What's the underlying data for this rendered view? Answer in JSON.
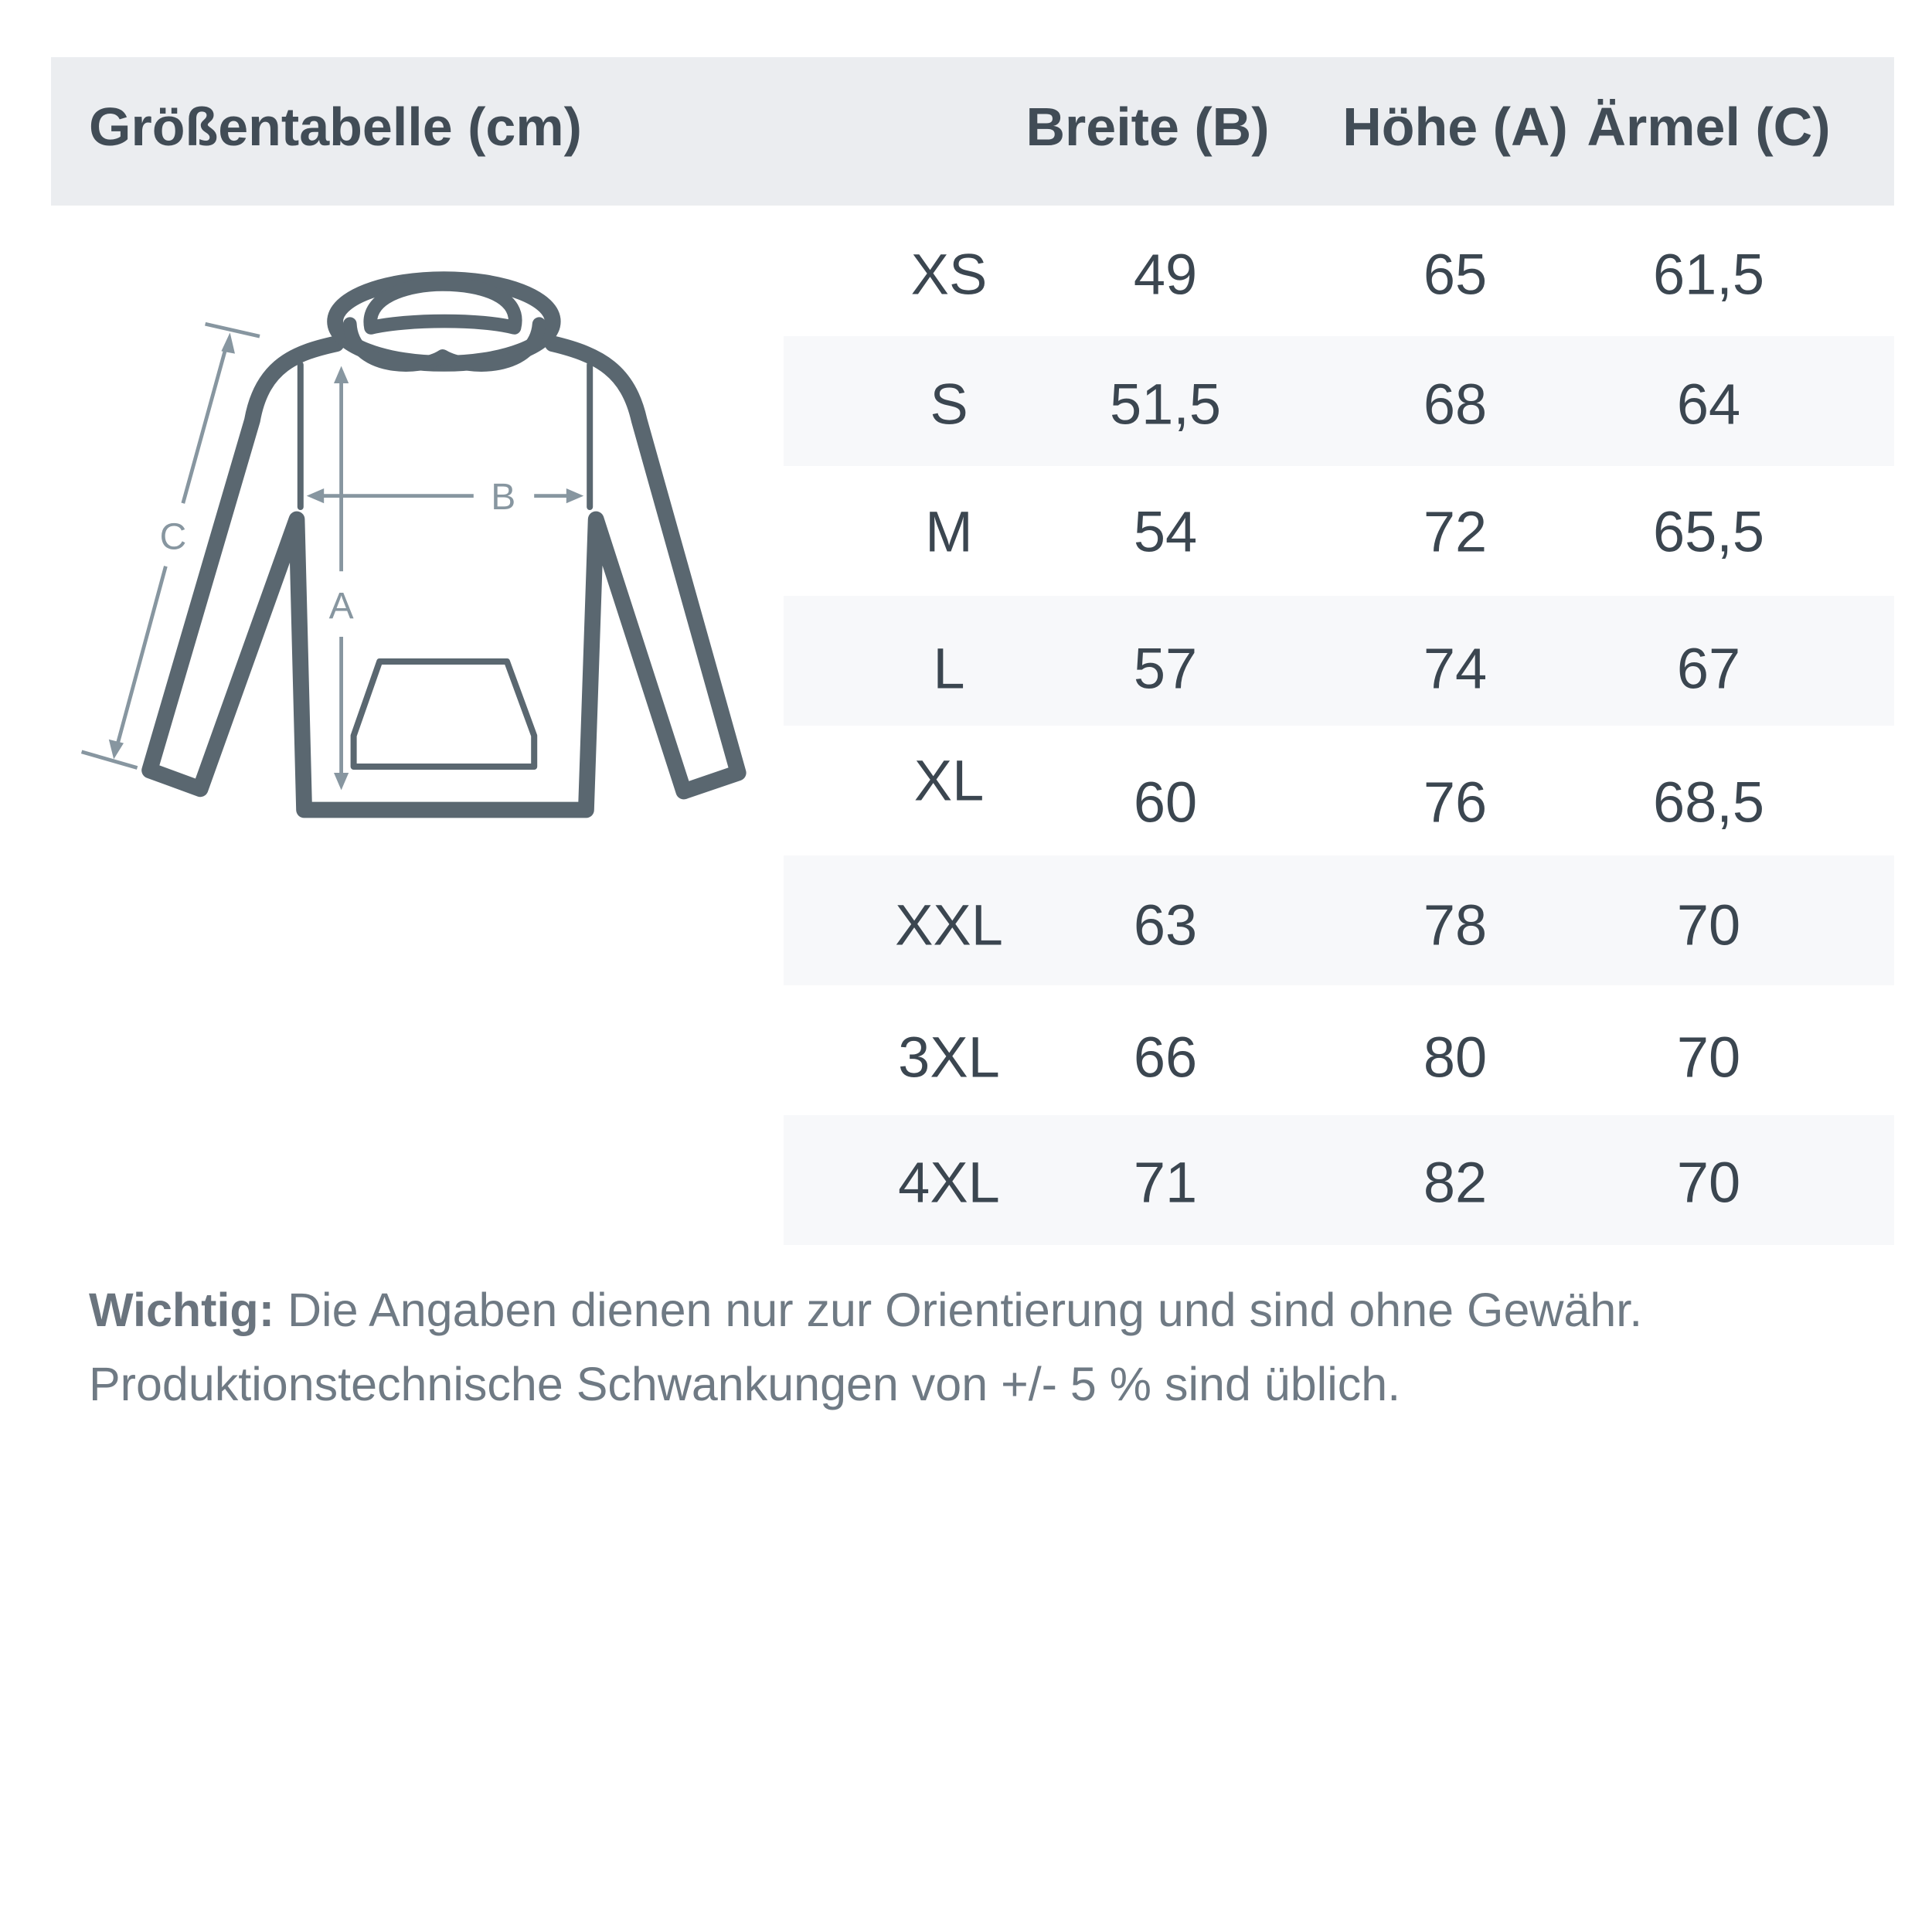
{
  "title": "Größentabelle (cm)",
  "columns": [
    "Breite (B)",
    "Höhe (A)",
    "Ärmel (C)"
  ],
  "rows": [
    {
      "size": "XS",
      "breite": "49",
      "hoehe": "65",
      "aermel": "61,5"
    },
    {
      "size": "S",
      "breite": "51,5",
      "hoehe": "68",
      "aermel": "64"
    },
    {
      "size": "M",
      "breite": "54",
      "hoehe": "72",
      "aermel": "65,5"
    },
    {
      "size": "L",
      "breite": "57",
      "hoehe": "74",
      "aermel": "67"
    },
    {
      "size": "XL",
      "breite": "60",
      "hoehe": "76",
      "aermel": "68,5"
    },
    {
      "size": "XXL",
      "breite": "63",
      "hoehe": "78",
      "aermel": "70"
    },
    {
      "size": "3XL",
      "breite": "66",
      "hoehe": "80",
      "aermel": "70"
    },
    {
      "size": "4XL",
      "breite": "71",
      "hoehe": "82",
      "aermel": "70"
    }
  ],
  "diagram": {
    "label_a": "A",
    "label_b": "B",
    "label_c": "C",
    "icon": "hoodie-measurement-icon"
  },
  "note": {
    "bold": "Wichtig:",
    "line1": " Die Angaben dienen nur zur Orientierung und sind ohne Gewähr.",
    "line2": "Produktionstechnische Schwankungen von +/- 5 % sind üblich."
  },
  "colors": {
    "header_bg": "#ebedf0",
    "stripe_bg": "#f7f8fa",
    "outline": "#5a6770",
    "measure": "#8796a0"
  }
}
